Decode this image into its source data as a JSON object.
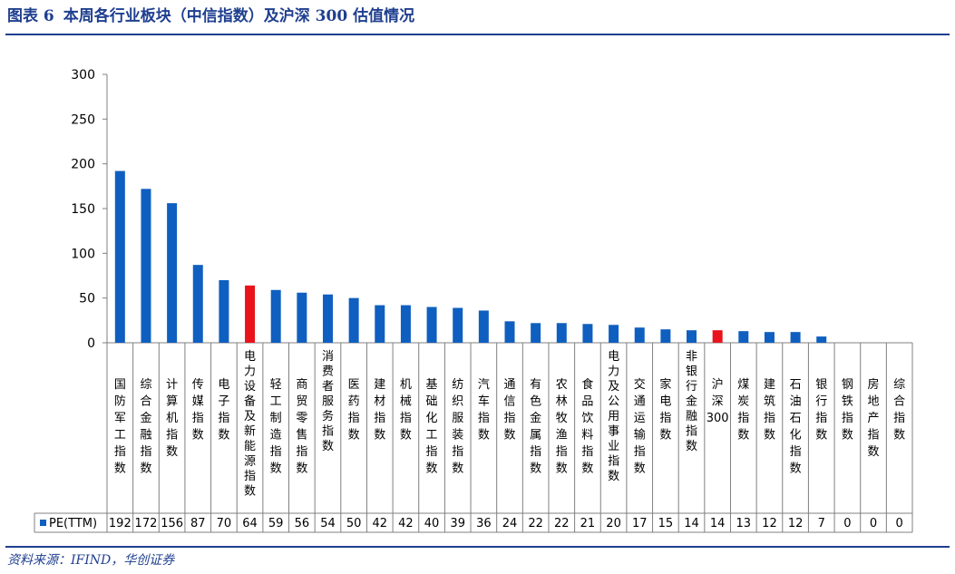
{
  "figure": {
    "label": "图表 6",
    "title": "本周各行业板块（中信指数）及沪深 300 估值情况"
  },
  "source": "资料来源：IFIND，华创证券",
  "colors": {
    "bar": "#0f5fc0",
    "highlight": "#e8131b",
    "axis": "#808080",
    "title": "#1f3f8f"
  },
  "chart_data": {
    "type": "bar",
    "title": "",
    "xlabel": "",
    "ylabel": "",
    "ylim": [
      0,
      300
    ],
    "yticks": [
      0,
      50,
      100,
      150,
      200,
      250,
      300
    ],
    "grid": false,
    "legend": "bottom-left (in data table)",
    "categories": [
      "国防军工指数",
      "综合金融指数",
      "计算机指数",
      "传媒指数",
      "电子指数",
      "电力设备及新能源指数",
      "轻工制造指数",
      "商贸零售指数",
      "消费者服务指数",
      "医药指数",
      "建材指数",
      "机械指数",
      "基础化工指数",
      "纺织服装指数",
      "汽车指数",
      "通信指数",
      "有色金属指数",
      "农林牧渔指数",
      "食品饮料指数",
      "电力及公用事业指数",
      "交通运输指数",
      "家电指数",
      "非银行金融指数",
      "沪深300",
      "煤炭指数",
      "建筑指数",
      "石油石化指数",
      "银行指数",
      "钢铁指数",
      "房地产指数",
      "综合指数"
    ],
    "series": [
      {
        "name": "PE(TTM)",
        "values": [
          192,
          172,
          156,
          87,
          70,
          64,
          59,
          56,
          54,
          50,
          42,
          42,
          40,
          39,
          36,
          24,
          22,
          22,
          21,
          20,
          17,
          15,
          14,
          14,
          13,
          12,
          12,
          7,
          0,
          0,
          0
        ],
        "labels": [
          "192",
          "172",
          "156",
          "87",
          "70",
          "64",
          "59",
          "56",
          "54",
          "50",
          "42",
          "42",
          "40",
          "39",
          "36",
          "24",
          "22",
          "22",
          "21",
          "20",
          "17",
          "15",
          "14",
          "14",
          "13",
          "12",
          "12",
          "7",
          "0",
          "0",
          "0"
        ]
      }
    ],
    "highlighted": [
      "电力设备及新能源指数",
      "沪深300"
    ]
  }
}
